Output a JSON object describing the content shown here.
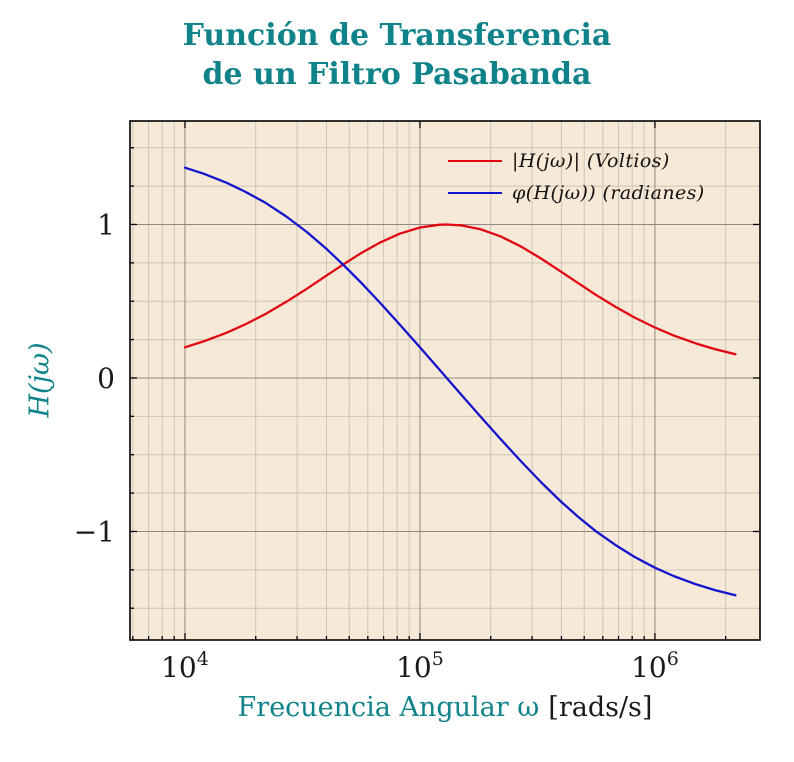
{
  "figure": {
    "title_line1": "Función de Transferencia",
    "title_line2": "de un Filtro Pasabanda"
  },
  "axes": {
    "ylabel": "H(jω)",
    "xlabel_main": "Frecuencia Angular ω",
    "xlabel_units": "[rads/s]"
  },
  "colors": {
    "accent_teal": "#0f8389",
    "text": "#1a1a1a"
  },
  "chart_data": {
    "type": "line",
    "title": "Función de Transferencia de un Filtro Pasabanda",
    "xlabel": "Frecuencia Angular ω [rads/s]",
    "ylabel": "H(jω)",
    "x_scale": "log",
    "y_scale": "linear",
    "xlim": [
      5834,
      2800000
    ],
    "ylim": [
      -1.707,
      1.674
    ],
    "grid": "both",
    "legend_position": "top-right",
    "y_minor_step": 0.25,
    "x_ticks": [
      {
        "value": 10000,
        "base": "10",
        "exp": "4"
      },
      {
        "value": 100000,
        "base": "10",
        "exp": "5"
      },
      {
        "value": 1000000,
        "base": "10",
        "exp": "6"
      }
    ],
    "y_ticks": [
      {
        "value": 1,
        "label": "1"
      },
      {
        "value": 0,
        "label": "0"
      },
      {
        "value": -1,
        "label": "−1"
      }
    ],
    "x": [
      10000,
      12000,
      15000,
      18000,
      22000,
      27000,
      33000,
      40000,
      47000,
      56000,
      68000,
      82000,
      100000,
      120000,
      130000,
      150000,
      180000,
      220000,
      270000,
      330000,
      400000,
      470000,
      560000,
      680000,
      820000,
      1000000,
      1200000,
      1500000,
      1800000,
      2200000
    ],
    "series": [
      {
        "name": "|H(jω)| (Voltios)",
        "color": "#e20612",
        "values": [
          0.2,
          0.238,
          0.294,
          0.348,
          0.417,
          0.496,
          0.581,
          0.667,
          0.738,
          0.812,
          0.884,
          0.94,
          0.98,
          0.998,
          1.0,
          0.994,
          0.97,
          0.923,
          0.855,
          0.775,
          0.691,
          0.619,
          0.542,
          0.463,
          0.393,
          0.329,
          0.277,
          0.224,
          0.188,
          0.154
        ]
      },
      {
        "name": "φ(H(jω)) (radianes)",
        "color": "#1414cc",
        "values": [
          1.37,
          1.331,
          1.272,
          1.214,
          1.141,
          1.052,
          0.951,
          0.841,
          0.74,
          0.623,
          0.486,
          0.348,
          0.199,
          0.061,
          0.0,
          -0.109,
          -0.247,
          -0.397,
          -0.545,
          -0.684,
          -0.808,
          -0.903,
          -0.998,
          -1.089,
          -1.166,
          -1.236,
          -1.29,
          -1.345,
          -1.382,
          -1.416
        ]
      }
    ],
    "colors": {
      "plot_bg": "#f7e9d8",
      "grid_minor": "#cdc4b7",
      "grid_major": "#8f897f",
      "axis": "#000000"
    }
  }
}
